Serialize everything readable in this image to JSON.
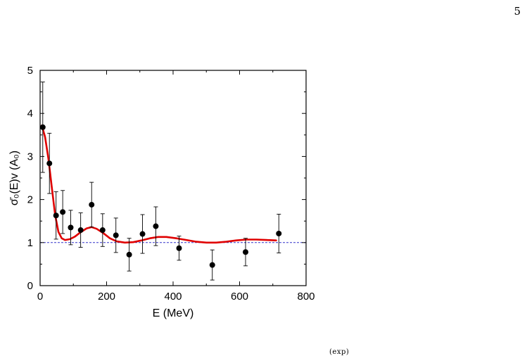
{
  "page": {
    "number": "5",
    "bottom_fragment": "(exp)"
  },
  "chart_data": {
    "type": "scatter",
    "title": "",
    "xlabel": "E (MeV)",
    "ylabel": "σ̄₀(E)v (A₀)",
    "xlim": [
      0,
      800
    ],
    "ylim": [
      0,
      5
    ],
    "xticks": [
      0,
      200,
      400,
      600,
      800
    ],
    "yticks": [
      0,
      1,
      2,
      3,
      4,
      5
    ],
    "grid": false,
    "legend": "none",
    "colors": {
      "points": "#000000",
      "fit_curve": "#e00000",
      "reference_line": "#3333cc"
    },
    "series": [
      {
        "type": "scatter_with_error_bars",
        "points": [
          {
            "x": 8,
            "y": 3.68,
            "err": 1.05
          },
          {
            "x": 28,
            "y": 2.84,
            "err": 0.7
          },
          {
            "x": 48,
            "y": 1.63,
            "err": 0.55
          },
          {
            "x": 68,
            "y": 1.71,
            "err": 0.5
          },
          {
            "x": 92,
            "y": 1.35,
            "err": 0.4
          },
          {
            "x": 122,
            "y": 1.29,
            "err": 0.4
          },
          {
            "x": 155,
            "y": 1.88,
            "err": 0.52
          },
          {
            "x": 188,
            "y": 1.29,
            "err": 0.38
          },
          {
            "x": 228,
            "y": 1.17,
            "err": 0.4
          },
          {
            "x": 268,
            "y": 0.72,
            "err": 0.38
          },
          {
            "x": 308,
            "y": 1.2,
            "err": 0.45
          },
          {
            "x": 348,
            "y": 1.38,
            "err": 0.45
          },
          {
            "x": 418,
            "y": 0.87,
            "err": 0.28
          },
          {
            "x": 518,
            "y": 0.48,
            "err": 0.35
          },
          {
            "x": 618,
            "y": 0.78,
            "err": 0.32
          },
          {
            "x": 718,
            "y": 1.21,
            "err": 0.45
          }
        ]
      },
      {
        "type": "line",
        "points": [
          [
            5,
            3.72
          ],
          [
            15,
            3.45
          ],
          [
            25,
            2.95
          ],
          [
            35,
            2.3
          ],
          [
            45,
            1.65
          ],
          [
            55,
            1.25
          ],
          [
            65,
            1.1
          ],
          [
            75,
            1.06
          ],
          [
            90,
            1.08
          ],
          [
            105,
            1.14
          ],
          [
            120,
            1.23
          ],
          [
            140,
            1.33
          ],
          [
            155,
            1.36
          ],
          [
            170,
            1.32
          ],
          [
            190,
            1.22
          ],
          [
            210,
            1.1
          ],
          [
            230,
            1.03
          ],
          [
            255,
            1.0
          ],
          [
            280,
            1.01
          ],
          [
            305,
            1.05
          ],
          [
            330,
            1.1
          ],
          [
            355,
            1.13
          ],
          [
            380,
            1.13
          ],
          [
            410,
            1.1
          ],
          [
            440,
            1.06
          ],
          [
            470,
            1.02
          ],
          [
            500,
            1.0
          ],
          [
            530,
            1.0
          ],
          [
            560,
            1.02
          ],
          [
            590,
            1.05
          ],
          [
            620,
            1.07
          ],
          [
            650,
            1.07
          ],
          [
            680,
            1.06
          ],
          [
            710,
            1.05
          ]
        ]
      },
      {
        "type": "reference_line",
        "y": 1.0,
        "style": "dashed"
      }
    ]
  }
}
